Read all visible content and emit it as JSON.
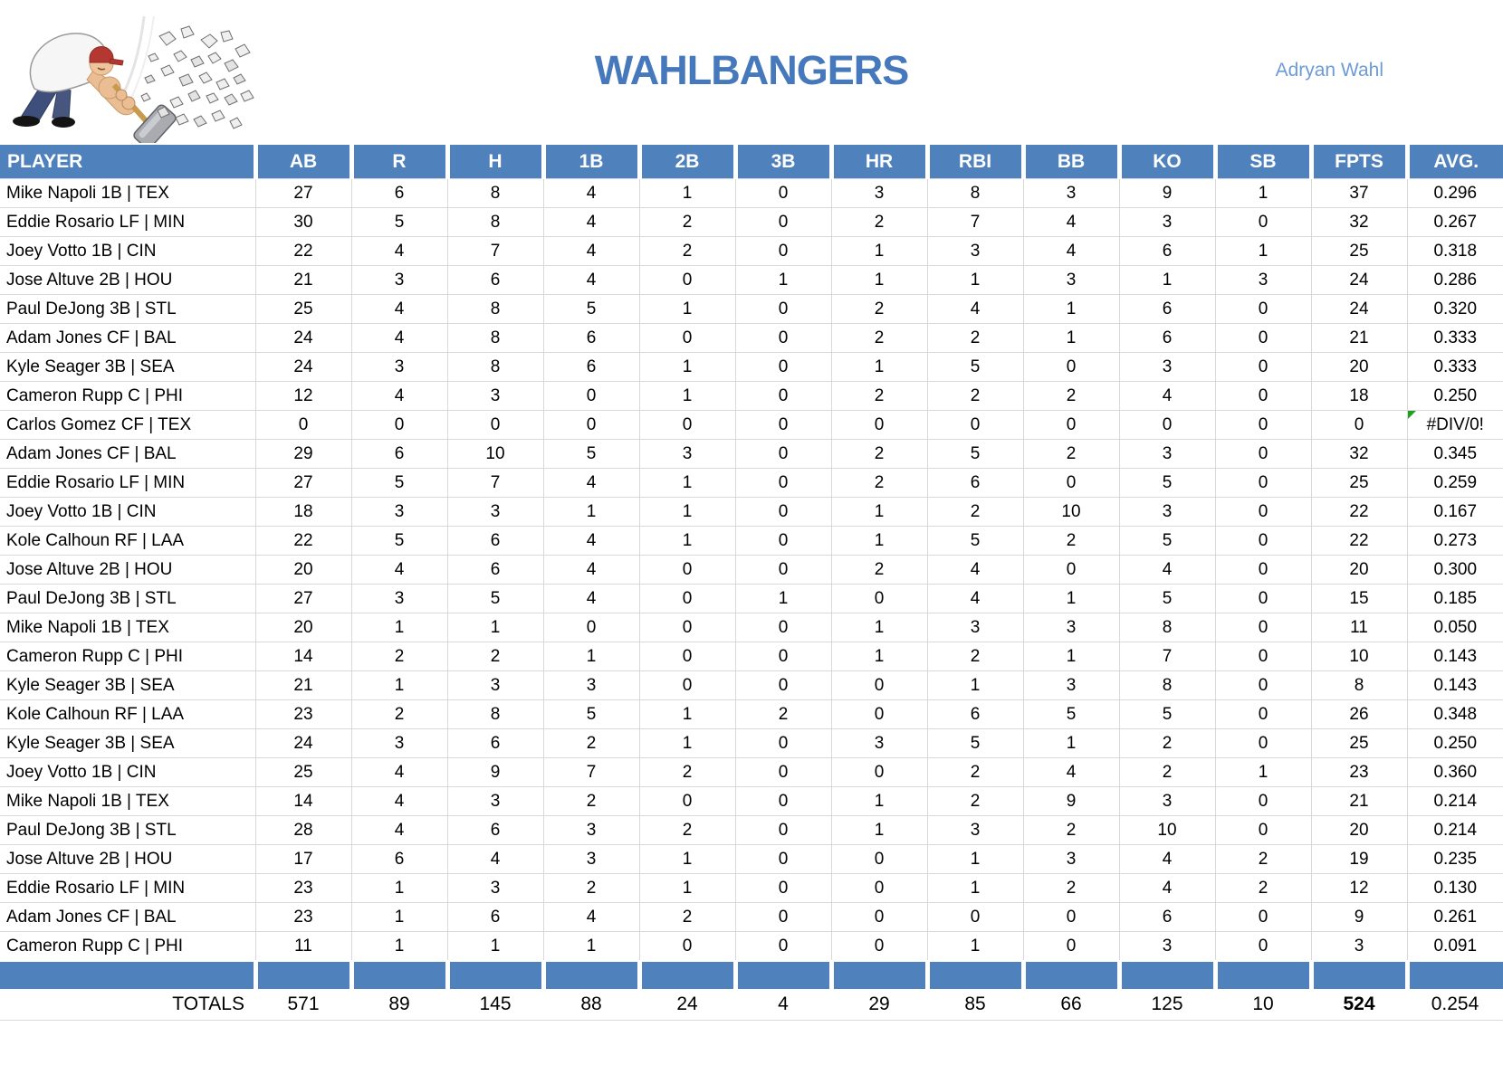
{
  "header": {
    "team_name": "WAHLBANGERS",
    "owner_name": "Adryan Wahl",
    "logo": "hammer-smash-cartoon"
  },
  "colors": {
    "header_fill": "#4F81BD",
    "title_text": "#4679BC",
    "owner_text": "#6D9BD6",
    "gridline": "#D9D9D9",
    "error_flag_green": "#1FA11F"
  },
  "table": {
    "columns": [
      "PLAYER",
      "AB",
      "R",
      "H",
      "1B",
      "2B",
      "3B",
      "HR",
      "RBI",
      "BB",
      "KO",
      "SB",
      "FPTS",
      "AVG."
    ],
    "rows": [
      {
        "player": "Mike Napoli 1B | TEX",
        "stats": [
          "27",
          "6",
          "8",
          "4",
          "1",
          "0",
          "3",
          "8",
          "3",
          "9",
          "1",
          "37",
          "0.296"
        ]
      },
      {
        "player": "Eddie Rosario LF | MIN",
        "stats": [
          "30",
          "5",
          "8",
          "4",
          "2",
          "0",
          "2",
          "7",
          "4",
          "3",
          "0",
          "32",
          "0.267"
        ]
      },
      {
        "player": "Joey Votto 1B | CIN",
        "stats": [
          "22",
          "4",
          "7",
          "4",
          "2",
          "0",
          "1",
          "3",
          "4",
          "6",
          "1",
          "25",
          "0.318"
        ]
      },
      {
        "player": "Jose Altuve 2B | HOU",
        "stats": [
          "21",
          "3",
          "6",
          "4",
          "0",
          "1",
          "1",
          "1",
          "3",
          "1",
          "3",
          "24",
          "0.286"
        ]
      },
      {
        "player": "Paul DeJong 3B | STL",
        "stats": [
          "25",
          "4",
          "8",
          "5",
          "1",
          "0",
          "2",
          "4",
          "1",
          "6",
          "0",
          "24",
          "0.320"
        ]
      },
      {
        "player": "Adam Jones CF | BAL",
        "stats": [
          "24",
          "4",
          "8",
          "6",
          "0",
          "0",
          "2",
          "2",
          "1",
          "6",
          "0",
          "21",
          "0.333"
        ]
      },
      {
        "player": "Kyle Seager 3B | SEA",
        "stats": [
          "24",
          "3",
          "8",
          "6",
          "1",
          "0",
          "1",
          "5",
          "0",
          "3",
          "0",
          "20",
          "0.333"
        ]
      },
      {
        "player": "Cameron Rupp C | PHI",
        "stats": [
          "12",
          "4",
          "3",
          "0",
          "1",
          "0",
          "2",
          "2",
          "2",
          "4",
          "0",
          "18",
          "0.250"
        ]
      },
      {
        "player": "Carlos Gomez CF | TEX",
        "stats": [
          "0",
          "0",
          "0",
          "0",
          "0",
          "0",
          "0",
          "0",
          "0",
          "0",
          "0",
          "0",
          "#DIV/0!"
        ]
      },
      {
        "player": "Adam Jones CF | BAL",
        "stats": [
          "29",
          "6",
          "10",
          "5",
          "3",
          "0",
          "2",
          "5",
          "2",
          "3",
          "0",
          "32",
          "0.345"
        ]
      },
      {
        "player": "Eddie Rosario LF | MIN",
        "stats": [
          "27",
          "5",
          "7",
          "4",
          "1",
          "0",
          "2",
          "6",
          "0",
          "5",
          "0",
          "25",
          "0.259"
        ]
      },
      {
        "player": "Joey Votto 1B | CIN",
        "stats": [
          "18",
          "3",
          "3",
          "1",
          "1",
          "0",
          "1",
          "2",
          "10",
          "3",
          "0",
          "22",
          "0.167"
        ]
      },
      {
        "player": "Kole Calhoun RF | LAA",
        "stats": [
          "22",
          "5",
          "6",
          "4",
          "1",
          "0",
          "1",
          "5",
          "2",
          "5",
          "0",
          "22",
          "0.273"
        ]
      },
      {
        "player": "Jose Altuve 2B | HOU",
        "stats": [
          "20",
          "4",
          "6",
          "4",
          "0",
          "0",
          "2",
          "4",
          "0",
          "4",
          "0",
          "20",
          "0.300"
        ]
      },
      {
        "player": "Paul DeJong 3B | STL",
        "stats": [
          "27",
          "3",
          "5",
          "4",
          "0",
          "1",
          "0",
          "4",
          "1",
          "5",
          "0",
          "15",
          "0.185"
        ]
      },
      {
        "player": "Mike Napoli 1B | TEX",
        "stats": [
          "20",
          "1",
          "1",
          "0",
          "0",
          "0",
          "1",
          "3",
          "3",
          "8",
          "0",
          "11",
          "0.050"
        ]
      },
      {
        "player": "Cameron Rupp C | PHI",
        "stats": [
          "14",
          "2",
          "2",
          "1",
          "0",
          "0",
          "1",
          "2",
          "1",
          "7",
          "0",
          "10",
          "0.143"
        ]
      },
      {
        "player": "Kyle Seager 3B | SEA",
        "stats": [
          "21",
          "1",
          "3",
          "3",
          "0",
          "0",
          "0",
          "1",
          "3",
          "8",
          "0",
          "8",
          "0.143"
        ]
      },
      {
        "player": "Kole Calhoun RF | LAA",
        "stats": [
          "23",
          "2",
          "8",
          "5",
          "1",
          "2",
          "0",
          "6",
          "5",
          "5",
          "0",
          "26",
          "0.348"
        ]
      },
      {
        "player": "Kyle Seager 3B | SEA",
        "stats": [
          "24",
          "3",
          "6",
          "2",
          "1",
          "0",
          "3",
          "5",
          "1",
          "2",
          "0",
          "25",
          "0.250"
        ]
      },
      {
        "player": "Joey Votto 1B | CIN",
        "stats": [
          "25",
          "4",
          "9",
          "7",
          "2",
          "0",
          "0",
          "2",
          "4",
          "2",
          "1",
          "23",
          "0.360"
        ]
      },
      {
        "player": "Mike Napoli 1B | TEX",
        "stats": [
          "14",
          "4",
          "3",
          "2",
          "0",
          "0",
          "1",
          "2",
          "9",
          "3",
          "0",
          "21",
          "0.214"
        ]
      },
      {
        "player": "Paul DeJong 3B | STL",
        "stats": [
          "28",
          "4",
          "6",
          "3",
          "2",
          "0",
          "1",
          "3",
          "2",
          "10",
          "0",
          "20",
          "0.214"
        ]
      },
      {
        "player": "Jose Altuve 2B | HOU",
        "stats": [
          "17",
          "6",
          "4",
          "3",
          "1",
          "0",
          "0",
          "1",
          "3",
          "4",
          "2",
          "19",
          "0.235"
        ]
      },
      {
        "player": "Eddie Rosario LF | MIN",
        "stats": [
          "23",
          "1",
          "3",
          "2",
          "1",
          "0",
          "0",
          "1",
          "2",
          "4",
          "2",
          "12",
          "0.130"
        ]
      },
      {
        "player": "Adam Jones CF | BAL",
        "stats": [
          "23",
          "1",
          "6",
          "4",
          "2",
          "0",
          "0",
          "0",
          "0",
          "6",
          "0",
          "9",
          "0.261"
        ]
      },
      {
        "player": "Cameron Rupp C | PHI",
        "stats": [
          "11",
          "1",
          "1",
          "1",
          "0",
          "0",
          "0",
          "1",
          "0",
          "3",
          "0",
          "3",
          "0.091"
        ]
      }
    ],
    "totals": {
      "label": "TOTALS",
      "values": [
        "571",
        "89",
        "145",
        "88",
        "24",
        "4",
        "29",
        "85",
        "66",
        "125",
        "10",
        "524",
        "0.254"
      ]
    }
  }
}
